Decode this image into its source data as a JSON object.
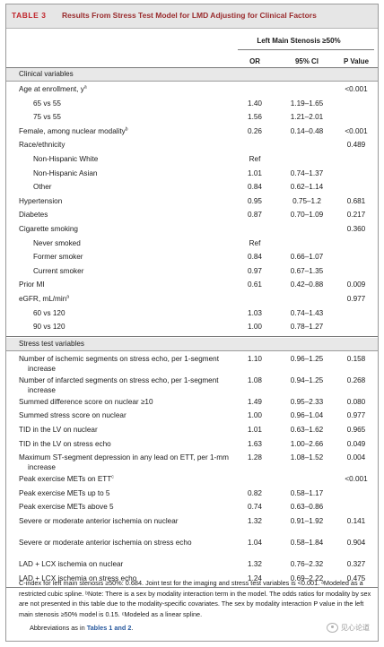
{
  "table": {
    "number": "TABLE 3",
    "title": "Results From Stress Test Model for LMD Adjusting for Clinical Factors",
    "column_group": "Left Main Stenosis ≥50%",
    "columns": [
      "OR",
      "95% CI",
      "P Value"
    ]
  },
  "sections": [
    {
      "label": "Clinical variables",
      "rows": [
        {
          "label": "Age at enrollment, y",
          "sup": "a",
          "indent": 1,
          "or": "",
          "ci": "",
          "p": "<0.001"
        },
        {
          "label": "65 vs 55",
          "sup": "",
          "indent": 2,
          "or": "1.40",
          "ci": "1.19–1.65",
          "p": ""
        },
        {
          "label": "75 vs 55",
          "sup": "",
          "indent": 2,
          "or": "1.56",
          "ci": "1.21–2.01",
          "p": ""
        },
        {
          "label": "Female, among nuclear modality",
          "sup": "b",
          "indent": 1,
          "or": "0.26",
          "ci": "0.14–0.48",
          "p": "<0.001"
        },
        {
          "label": "Race/ethnicity",
          "sup": "",
          "indent": 1,
          "or": "",
          "ci": "",
          "p": "0.489"
        },
        {
          "label": "Non-Hispanic White",
          "sup": "",
          "indent": 2,
          "or": "Ref",
          "ci": "",
          "p": ""
        },
        {
          "label": "Non-Hispanic Asian",
          "sup": "",
          "indent": 2,
          "or": "1.01",
          "ci": "0.74–1.37",
          "p": ""
        },
        {
          "label": "Other",
          "sup": "",
          "indent": 2,
          "or": "0.84",
          "ci": "0.62–1.14",
          "p": ""
        },
        {
          "label": "Hypertension",
          "sup": "",
          "indent": 1,
          "or": "0.95",
          "ci": "0.75–1.2",
          "p": "0.681"
        },
        {
          "label": "Diabetes",
          "sup": "",
          "indent": 1,
          "or": "0.87",
          "ci": "0.70–1.09",
          "p": "0.217"
        },
        {
          "label": "Cigarette smoking",
          "sup": "",
          "indent": 1,
          "or": "",
          "ci": "",
          "p": "0.360"
        },
        {
          "label": "Never smoked",
          "sup": "",
          "indent": 2,
          "or": "Ref",
          "ci": "",
          "p": ""
        },
        {
          "label": "Former smoker",
          "sup": "",
          "indent": 2,
          "or": "0.84",
          "ci": "0.66–1.07",
          "p": ""
        },
        {
          "label": "Current smoker",
          "sup": "",
          "indent": 2,
          "or": "0.97",
          "ci": "0.67–1.35",
          "p": ""
        },
        {
          "label": "Prior MI",
          "sup": "",
          "indent": 1,
          "or": "0.61",
          "ci": "0.42–0.88",
          "p": "0.009"
        },
        {
          "label": "eGFR, mL/min",
          "sup": "a",
          "indent": 1,
          "or": "",
          "ci": "",
          "p": "0.977"
        },
        {
          "label": "60 vs 120",
          "sup": "",
          "indent": 2,
          "or": "1.03",
          "ci": "0.74–1.43",
          "p": ""
        },
        {
          "label": "90 vs 120",
          "sup": "",
          "indent": 2,
          "or": "1.00",
          "ci": "0.78–1.27",
          "p": ""
        }
      ]
    },
    {
      "label": "Stress test variables",
      "rows": [
        {
          "label": "Number of ischemic segments on stress echo, per 1-segment increase",
          "sup": "",
          "indent": 1,
          "or": "1.10",
          "ci": "0.96–1.25",
          "p": "0.158"
        },
        {
          "label": "Number of infarcted segments on stress echo, per 1-segment increase",
          "sup": "",
          "indent": 1,
          "or": "1.08",
          "ci": "0.94–1.25",
          "p": "0.268"
        },
        {
          "label": "Summed difference score on nuclear ≥10",
          "sup": "",
          "indent": 1,
          "or": "1.49",
          "ci": "0.95–2.33",
          "p": "0.080"
        },
        {
          "label": "Summed stress score on nuclear",
          "sup": "",
          "indent": 1,
          "or": "1.00",
          "ci": "0.96–1.04",
          "p": "0.977"
        },
        {
          "label": "TID in the LV on nuclear",
          "sup": "",
          "indent": 1,
          "or": "1.01",
          "ci": "0.63–1.62",
          "p": "0.965"
        },
        {
          "label": "TID in the LV on stress echo",
          "sup": "",
          "indent": 1,
          "or": "1.63",
          "ci": "1.00–2.66",
          "p": "0.049"
        },
        {
          "label": "Maximum ST-segment depression in any lead on ETT, per 1-mm increase",
          "sup": "",
          "indent": 1,
          "or": "1.28",
          "ci": "1.08–1.52",
          "p": "0.004"
        },
        {
          "label": "Peak exercise METs on ETT",
          "sup": "c",
          "indent": 1,
          "or": "",
          "ci": "",
          "p": "<0.001"
        },
        {
          "label": "Peak exercise METs up to 5",
          "sup": "",
          "indent": 1,
          "or": "0.82",
          "ci": "0.58–1.17",
          "p": ""
        },
        {
          "label": "Peak exercise METs above 5",
          "sup": "",
          "indent": 1,
          "or": "0.74",
          "ci": "0.63–0.86",
          "p": ""
        },
        {
          "label": "Severe or moderate anterior ischemia on nuclear",
          "sup": "",
          "indent": 1,
          "or": "1.32",
          "ci": "0.91–1.92",
          "p": "0.141"
        },
        {
          "label": "Severe or moderate anterior ischemia on stress echo",
          "sup": "",
          "indent": 1,
          "or": "1.04",
          "ci": "0.58–1.84",
          "p": "0.904"
        },
        {
          "label": "LAD + LCX ischemia on nuclear",
          "sup": "",
          "indent": 1,
          "or": "1.32",
          "ci": "0.76–2.32",
          "p": "0.327"
        },
        {
          "label": "LAD + LCX ischemia on stress echo",
          "sup": "",
          "indent": 1,
          "or": "1.24",
          "ci": "0.69–2.22",
          "p": "0.475"
        }
      ]
    }
  ],
  "footnotes": {
    "text": "C-index for left main stenosis ≥50%: 0.684. Joint test for the imaging and stress test variables is <0.001. ᵃModeled as a restricted cubic spline. ᵇNote: There is a sex by modality interaction term in the model. The odds ratios for modality by sex are not presented in this table due to the modality-specific covariates. The sex by modality interaction P value in the left main stenosis ≥50% model is 0.15. ᶜModeled as a linear spline.",
    "abbreviations_prefix": "Abbreviations as in ",
    "abbreviations_link": "Tables 1 and 2",
    "abbreviations_suffix": "."
  },
  "watermark": "见心论道"
}
